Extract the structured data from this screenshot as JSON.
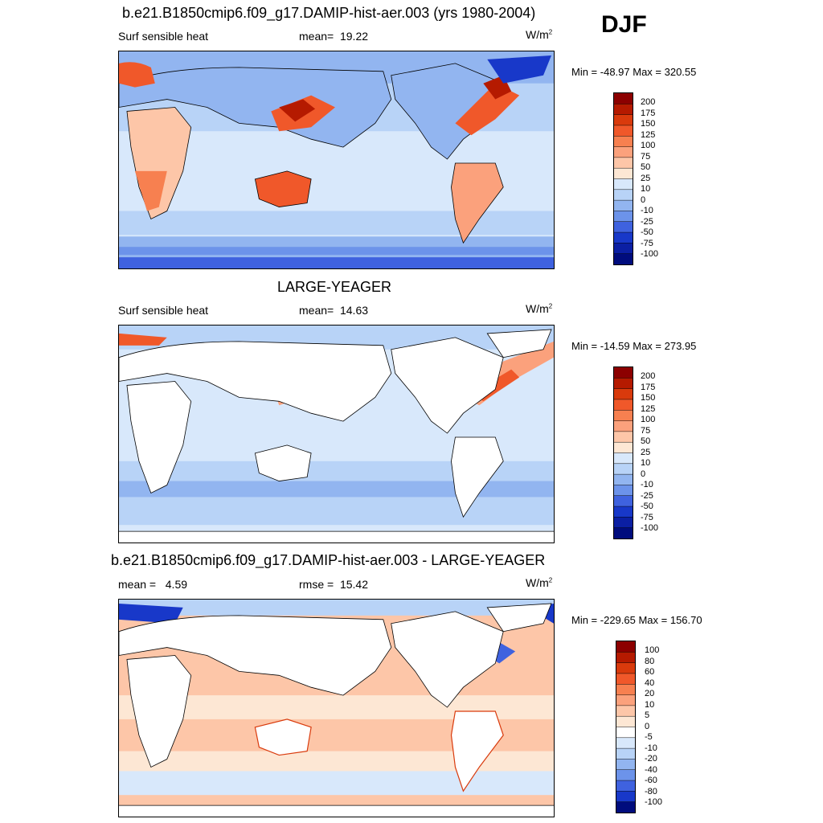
{
  "season": "DJF",
  "panels": [
    {
      "title": "b.e21.B1850cmip6.f09_g17.DAMIP-hist-aer.003 (yrs 1980-2004)",
      "left_label": "Surf sensible heat",
      "stat_label": "mean=",
      "stat_value": "19.22",
      "units": "W/m",
      "units_sup": "2",
      "minmax": "Min = -48.97 Max = 320.55",
      "colorbar_labels": [
        "200",
        "175",
        "150",
        "125",
        "100",
        "75",
        "50",
        "25",
        "10",
        "0",
        "-10",
        "-25",
        "-50",
        "-75",
        "-100"
      ],
      "colors": [
        "#8c0000",
        "#b51a00",
        "#d93a0c",
        "#f0582a",
        "#f78050",
        "#fba17c",
        "#fdc6a8",
        "#fde7d4",
        "#d8e8fb",
        "#b8d3f7",
        "#92b5f0",
        "#6c93ea",
        "#3f62df",
        "#1838c9",
        "#0b1fa3",
        "#000c7d"
      ]
    },
    {
      "title": "LARGE-YEAGER",
      "left_label": "Surf sensible heat",
      "stat_label": "mean=",
      "stat_value": "14.63",
      "units": "W/m",
      "units_sup": "2",
      "minmax": "Min = -14.59 Max = 273.95",
      "colorbar_labels": [
        "200",
        "175",
        "150",
        "125",
        "100",
        "75",
        "50",
        "25",
        "10",
        "0",
        "-10",
        "-25",
        "-50",
        "-75",
        "-100"
      ],
      "colors": [
        "#8c0000",
        "#b51a00",
        "#d93a0c",
        "#f0582a",
        "#f78050",
        "#fba17c",
        "#fdc6a8",
        "#fde7d4",
        "#d8e8fb",
        "#b8d3f7",
        "#92b5f0",
        "#6c93ea",
        "#3f62df",
        "#1838c9",
        "#0b1fa3",
        "#000c7d"
      ]
    },
    {
      "title": "b.e21.B1850cmip6.f09_g17.DAMIP-hist-aer.003 - LARGE-YEAGER",
      "left_label": "mean =",
      "left_value": "4.59",
      "stat_label": "rmse =",
      "stat_value": "15.42",
      "units": "W/m",
      "units_sup": "2",
      "minmax": "Min = -229.65 Max = 156.70",
      "colorbar_labels": [
        "100",
        "80",
        "60",
        "40",
        "20",
        "10",
        "5",
        "0",
        "-5",
        "-10",
        "-20",
        "-40",
        "-60",
        "-80",
        "-100"
      ],
      "colors": [
        "#8c0000",
        "#b51a00",
        "#d93a0c",
        "#f0582a",
        "#f78050",
        "#fba17c",
        "#fdc6a8",
        "#fde7d4",
        "#ffffff",
        "#d8e8fb",
        "#b8d3f7",
        "#92b5f0",
        "#6c93ea",
        "#3f62df",
        "#1838c9",
        "#000c7d"
      ]
    }
  ]
}
